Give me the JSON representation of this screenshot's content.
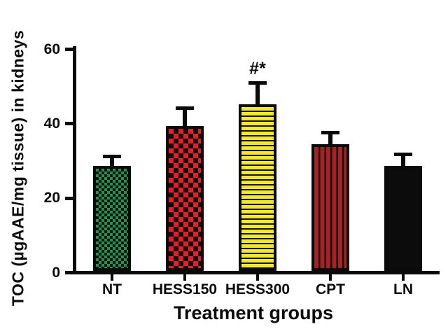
{
  "chart_data": {
    "type": "bar",
    "title": "",
    "xlabel": "Treatment groups",
    "ylabel": "TOC (µgAAE/mg tissue) in kidneys",
    "categories": [
      "NT",
      "HESS150",
      "HESS300",
      "CPT",
      "LN"
    ],
    "values": [
      28.2,
      39.0,
      44.8,
      34.0,
      28.3
    ],
    "errors_plus": [
      2.2,
      4.5,
      5.5,
      2.9,
      2.8
    ],
    "ylim": [
      0,
      60
    ],
    "yticks": [
      0,
      20,
      40,
      60
    ],
    "grid": false,
    "legend": null,
    "annotations": [
      {
        "category": "HESS300",
        "text": "#*"
      }
    ],
    "bar_styles": [
      {
        "name": "checker-green",
        "pattern": "fine-checkerboard",
        "color": "#149a4e"
      },
      {
        "name": "checker-red",
        "pattern": "coarse-checkerboard",
        "color": "#ec1c24"
      },
      {
        "name": "hstripe-yellow",
        "pattern": "horizontal-stripes",
        "color": "#f5eb16"
      },
      {
        "name": "vstripe-darkred",
        "pattern": "vertical-stripes",
        "color": "#a82125"
      },
      {
        "name": "solid-black",
        "pattern": "solid",
        "color": "#0c0c0c"
      }
    ],
    "axis_color": "#0a0a0a"
  }
}
